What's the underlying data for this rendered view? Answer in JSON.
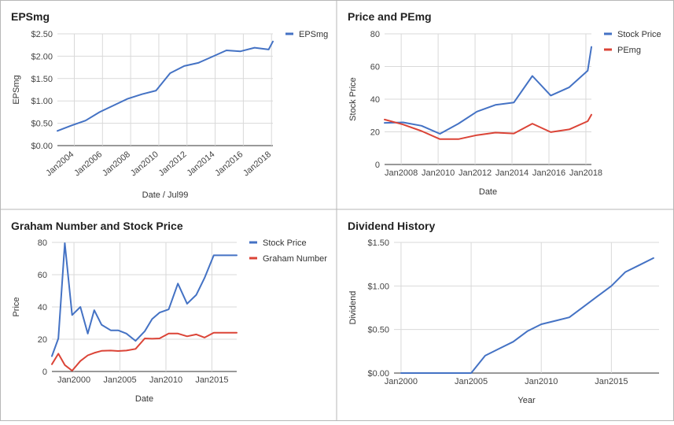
{
  "colors": {
    "stock_price": "#4472c4",
    "epsmg": "#4472c4",
    "pemg": "#db4437",
    "graham_number": "#db4437",
    "dividend": "#4472c4",
    "grid": "#d9d9d9",
    "border": "#b7b7b7"
  },
  "chart_data": [
    {
      "type": "line",
      "title": "EPSmg",
      "xlabel": "Date / Jul99",
      "ylabel": "EPSmg",
      "ylim": [
        0,
        2.5
      ],
      "y_ticks": [
        "$0.00",
        "$0.50",
        "$1.00",
        "$1.50",
        "$2.00",
        "$2.50"
      ],
      "x_ticks": [
        "Jan2004",
        "Jan2006",
        "Jan2008",
        "Jan2010",
        "Jan2012",
        "Jan2014",
        "Jan2016",
        "Jan2018"
      ],
      "legend_position": "right",
      "series": [
        {
          "name": "EPSmg",
          "x": [
            2002.8,
            2003.8,
            2004.8,
            2005.8,
            2006.8,
            2007.8,
            2008.8,
            2009.8,
            2010.8,
            2011.8,
            2012.8,
            2013.8,
            2014.8,
            2015.8,
            2016.8,
            2017.8,
            2018.1
          ],
          "y": [
            0.33,
            0.45,
            0.56,
            0.75,
            0.9,
            1.05,
            1.15,
            1.23,
            1.62,
            1.78,
            1.85,
            1.99,
            2.13,
            2.11,
            2.19,
            2.15,
            2.33
          ]
        }
      ]
    },
    {
      "type": "line",
      "title": "Price and PEmg",
      "xlabel": "Date",
      "ylabel": "Stock Price",
      "ylim": [
        0,
        80
      ],
      "y_ticks": [
        "0",
        "20",
        "40",
        "60",
        "80"
      ],
      "x_ticks": [
        "Jan2008",
        "Jan2010",
        "Jan2012",
        "Jan2014",
        "Jan2016",
        "Jan2018"
      ],
      "legend_position": "right",
      "series": [
        {
          "name": "Stock Price",
          "x": [
            2007.1,
            2008.1,
            2009.1,
            2010.1,
            2011.1,
            2012.1,
            2013.1,
            2014.1,
            2015.1,
            2016.1,
            2017.1,
            2018.1,
            2018.3
          ],
          "y": [
            25.5,
            25.8,
            23.7,
            18.8,
            25.0,
            32.4,
            36.5,
            38.0,
            54.2,
            42.2,
            47.3,
            57.5,
            72.0
          ]
        },
        {
          "name": "PEmg",
          "x": [
            2007.1,
            2008.1,
            2009.1,
            2010.1,
            2011.1,
            2012.1,
            2013.1,
            2014.1,
            2015.1,
            2016.1,
            2017.1,
            2018.1,
            2018.3
          ],
          "y": [
            27.5,
            24.5,
            20.5,
            15.5,
            15.5,
            18.0,
            19.5,
            19.0,
            25.0,
            19.8,
            21.5,
            26.5,
            30.5
          ]
        }
      ]
    },
    {
      "type": "line",
      "title": "Graham Number and Stock Price",
      "xlabel": "Date",
      "ylabel": "Price",
      "ylim": [
        0,
        80
      ],
      "y_ticks": [
        "0",
        "20",
        "40",
        "60",
        "80"
      ],
      "x_ticks": [
        "Jan2000",
        "Jan2005",
        "Jan2010",
        "Jan2015"
      ],
      "legend_position": "right",
      "series": [
        {
          "name": "Stock Price",
          "x": [
            1997.6,
            1998.3,
            1999.0,
            1999.8,
            2000.7,
            2001.5,
            2002.2,
            2003.0,
            2004.0,
            2004.8,
            2005.7,
            2006.7,
            2007.7,
            2008.5,
            2009.3,
            2010.3,
            2011.3,
            2012.3,
            2013.3,
            2014.2,
            2015.2,
            2016.2,
            2016.8,
            2017.7
          ],
          "y": [
            9.5,
            20.5,
            79.5,
            35.0,
            40.0,
            23.5,
            38.0,
            29.0,
            25.5,
            25.5,
            23.5,
            19.0,
            25.0,
            32.5,
            36.5,
            38.5,
            54.5,
            42.0,
            47.5,
            58.0,
            72.0,
            72.0,
            72.0,
            72.0
          ]
        },
        {
          "name": "Graham Number",
          "x": [
            1997.6,
            1998.3,
            1999.0,
            1999.8,
            2000.7,
            2001.5,
            2002.2,
            2003.0,
            2004.0,
            2004.8,
            2005.7,
            2006.7,
            2007.7,
            2008.5,
            2009.3,
            2010.3,
            2011.3,
            2012.3,
            2013.3,
            2014.2,
            2015.2,
            2016.2,
            2016.8,
            2017.7
          ],
          "y": [
            4.5,
            11.0,
            4.0,
            0.5,
            6.5,
            10.0,
            11.5,
            12.8,
            13.0,
            12.7,
            13.0,
            14.0,
            20.5,
            20.3,
            20.5,
            23.5,
            23.5,
            21.8,
            23.0,
            21.0,
            24.0,
            24.0,
            24.0,
            24.0
          ]
        }
      ]
    },
    {
      "type": "line",
      "title": "Dividend History",
      "xlabel": "Year",
      "ylabel": "Dividend",
      "ylim": [
        0,
        1.5
      ],
      "y_ticks": [
        "$0.00",
        "$0.50",
        "$1.00",
        "$1.50"
      ],
      "x_ticks": [
        "Jan2000",
        "Jan2005",
        "Jan2010",
        "Jan2015"
      ],
      "legend_position": "none",
      "series": [
        {
          "name": "",
          "x": [
            2000,
            2001,
            2002,
            2003,
            2004,
            2005,
            2006,
            2007,
            2008,
            2009,
            2010,
            2011,
            2012,
            2013,
            2014,
            2015,
            2016,
            2017,
            2018
          ],
          "y": [
            0,
            0,
            0,
            0,
            0,
            0,
            0.2,
            0.28,
            0.36,
            0.48,
            0.56,
            0.6,
            0.64,
            0.76,
            0.88,
            1.0,
            1.16,
            1.24,
            1.32
          ]
        }
      ]
    }
  ]
}
